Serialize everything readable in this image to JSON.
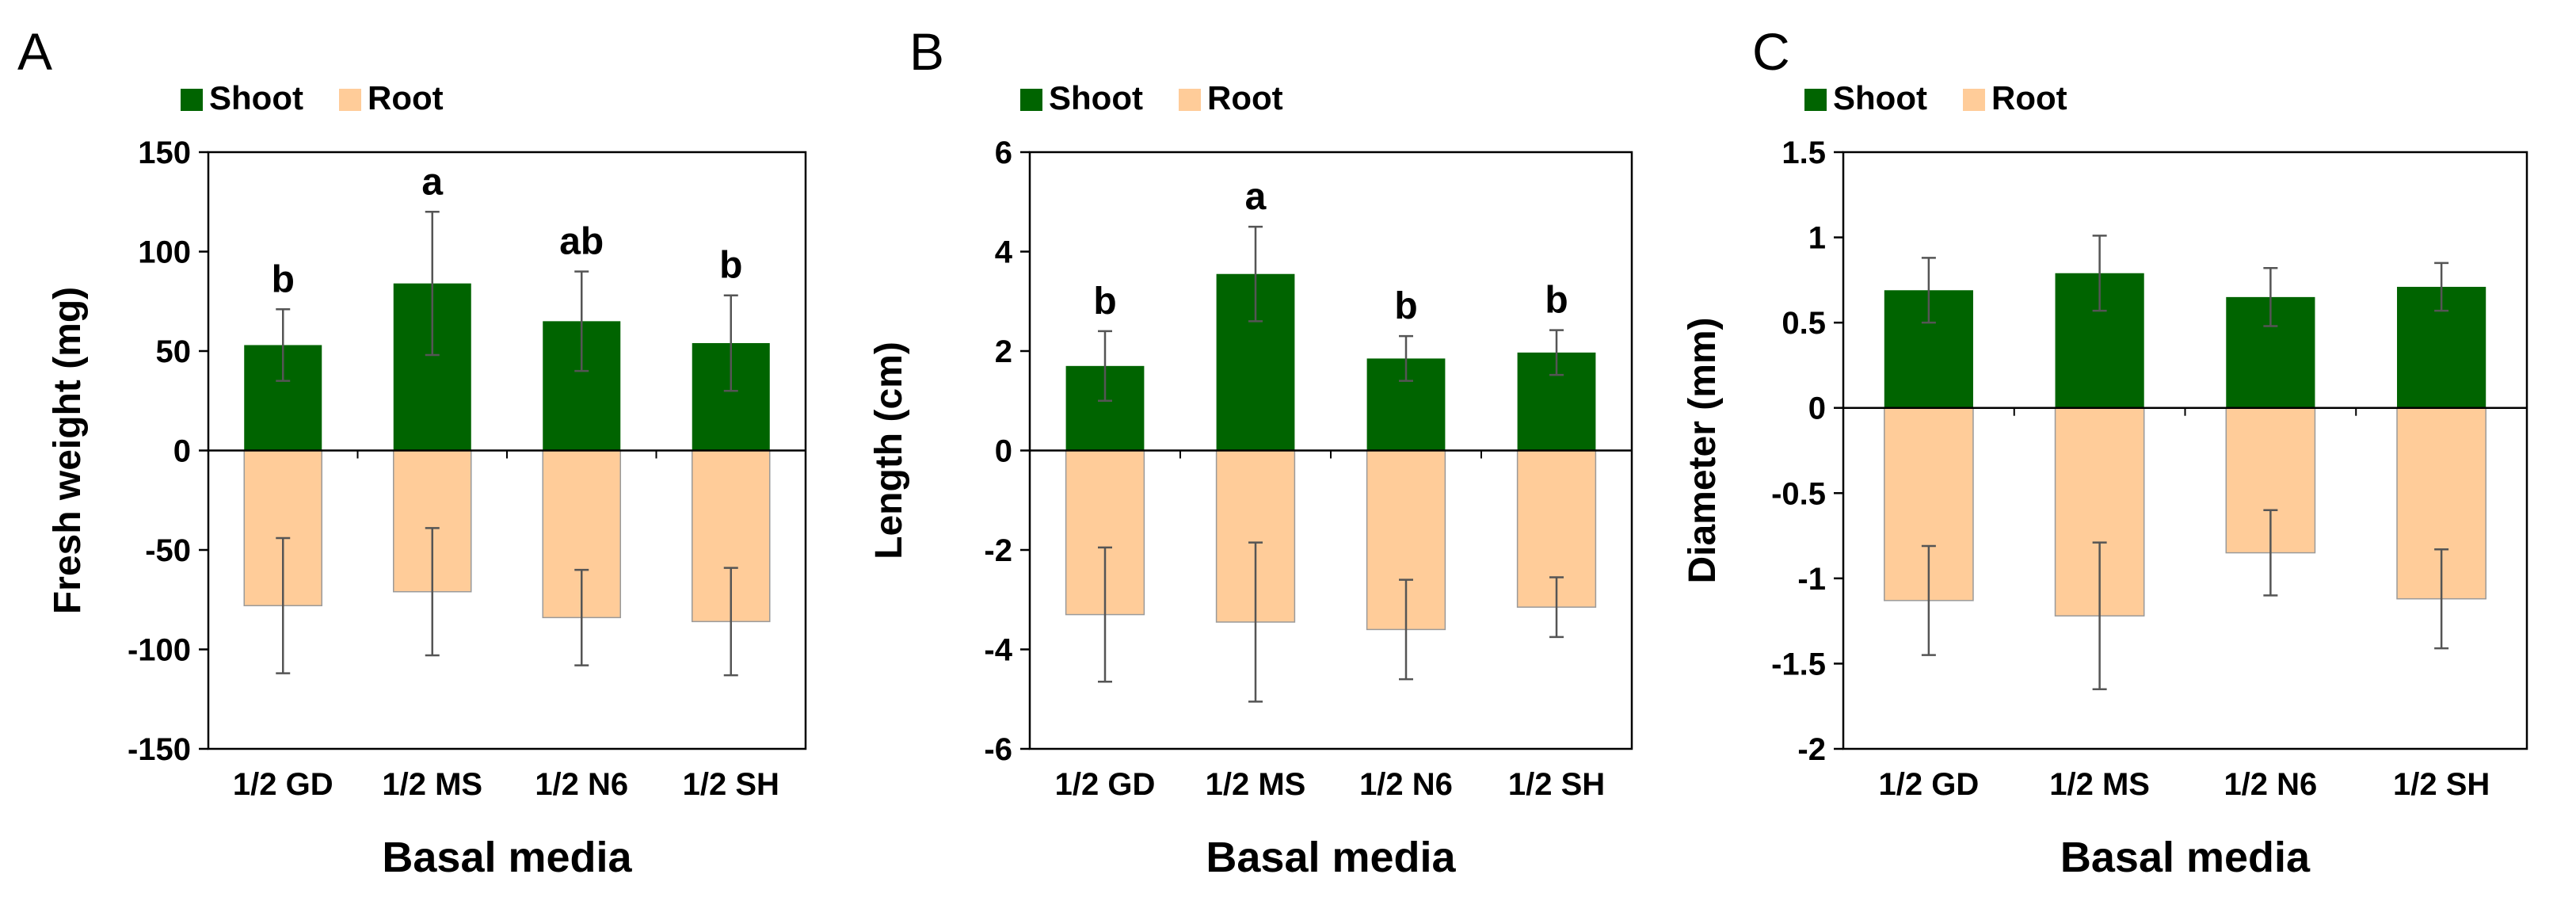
{
  "colors": {
    "shoot": "#006400",
    "root": "#FFCC99",
    "root_edge": "#9a9a9a",
    "error_bar": "#555555",
    "axis": "#000000"
  },
  "chart_data": [
    {
      "type": "bar",
      "panel": "A",
      "xlabel": "Basal media",
      "ylabel": "Fresh weight (mg)",
      "ylim": [
        -150,
        150
      ],
      "yticks": [
        -150,
        -100,
        -50,
        0,
        50,
        100,
        150
      ],
      "ytick_labels": [
        "-150",
        "-100",
        "-50",
        "0",
        "50",
        "100",
        "150"
      ],
      "categories": [
        "1/2 GD",
        "1/2 MS",
        "1/2 N6",
        "1/2 SH"
      ],
      "legend": [
        "Shoot",
        "Root"
      ],
      "series": [
        {
          "name": "Shoot",
          "values": [
            53,
            84,
            65,
            54
          ],
          "errors": [
            18,
            36,
            25,
            24
          ]
        },
        {
          "name": "Root",
          "values": [
            -78,
            -71,
            -84,
            -86
          ],
          "errors": [
            34,
            32,
            24,
            27
          ]
        }
      ],
      "annotations": [
        "b",
        "a",
        "ab",
        "b"
      ]
    },
    {
      "type": "bar",
      "panel": "B",
      "xlabel": "Basal media",
      "ylabel": "Length (cm)",
      "ylim": [
        -6,
        6
      ],
      "yticks": [
        -6,
        -4,
        -2,
        0,
        2,
        4,
        6
      ],
      "ytick_labels": [
        "-6",
        "-4",
        "-2",
        "0",
        "2",
        "4",
        "6"
      ],
      "categories": [
        "1/2 GD",
        "1/2 MS",
        "1/2 N6",
        "1/2 SH"
      ],
      "legend": [
        "Shoot",
        "Root"
      ],
      "series": [
        {
          "name": "Shoot",
          "values": [
            1.7,
            3.55,
            1.85,
            1.97
          ],
          "errors": [
            0.7,
            0.95,
            0.45,
            0.45
          ]
        },
        {
          "name": "Root",
          "values": [
            -3.3,
            -3.45,
            -3.6,
            -3.15
          ],
          "errors": [
            1.35,
            1.6,
            1.0,
            0.6
          ]
        }
      ],
      "annotations": [
        "b",
        "a",
        "b",
        "b"
      ]
    },
    {
      "type": "bar",
      "panel": "C",
      "xlabel": "Basal media",
      "ylabel": "Diameter (mm)",
      "ylim": [
        -2,
        1.5
      ],
      "yticks": [
        -2,
        -1.5,
        -1,
        -0.5,
        0,
        0.5,
        1,
        1.5
      ],
      "ytick_labels": [
        "-2",
        "-1.5",
        "-1",
        "-0.5",
        "0",
        "0.5",
        "1",
        "1.5"
      ],
      "categories": [
        "1/2 GD",
        "1/2 MS",
        "1/2 N6",
        "1/2 SH"
      ],
      "legend": [
        "Shoot",
        "Root"
      ],
      "series": [
        {
          "name": "Shoot",
          "values": [
            0.69,
            0.79,
            0.65,
            0.71
          ],
          "errors": [
            0.19,
            0.22,
            0.17,
            0.14
          ]
        },
        {
          "name": "Root",
          "values": [
            -1.13,
            -1.22,
            -0.85,
            -1.12
          ],
          "errors": [
            0.32,
            0.43,
            0.25,
            0.29
          ]
        }
      ],
      "annotations": []
    }
  ]
}
